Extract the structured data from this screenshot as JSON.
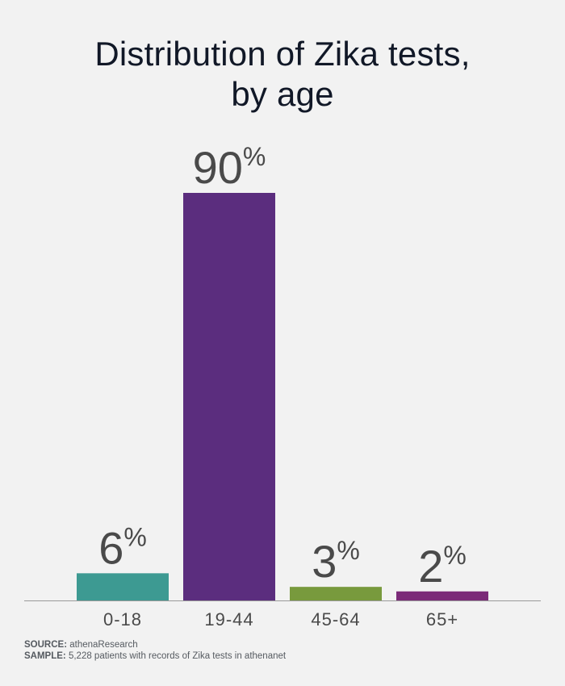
{
  "title_line1": "Distribution of Zika tests,",
  "title_line2": "by age",
  "chart_data": {
    "type": "bar",
    "title": "Distribution of Zika tests, by age",
    "categories": [
      "0-18",
      "19-44",
      "45-64",
      "65+"
    ],
    "values": [
      6,
      90,
      3,
      2
    ],
    "value_labels": [
      "6",
      "90",
      "3",
      "2"
    ],
    "value_suffix": "%",
    "colors": [
      "#3d9a92",
      "#5b2d7e",
      "#789a3d",
      "#7b2a78"
    ],
    "ylim": [
      0,
      100
    ],
    "grid": false,
    "legend": "none"
  },
  "footer": {
    "source_label": "SOURCE:",
    "source_text": "athenaResearch",
    "sample_label": "SAMPLE:",
    "sample_text": "5,228 patients with records of Zika tests in athenanet"
  },
  "colors": {
    "background": "#f2f2f2",
    "axis": "#9a9a9a",
    "label_text": "#4a4a4a",
    "title_text": "#111827"
  }
}
